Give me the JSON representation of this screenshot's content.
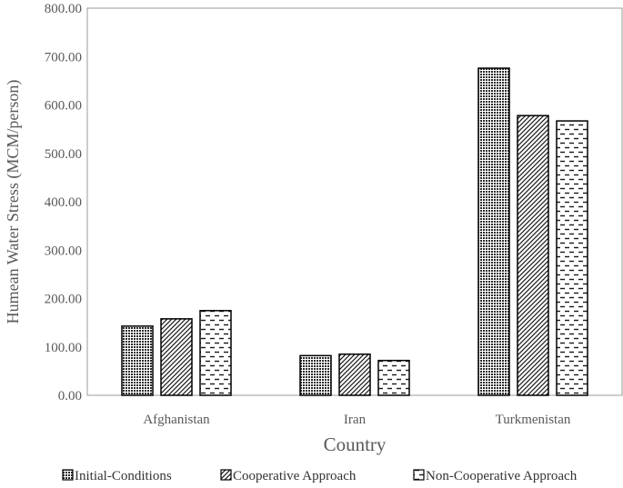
{
  "chart_data": {
    "type": "bar",
    "title": "",
    "xlabel": "Country",
    "ylabel": "Humean Water Stress (MCM/person)",
    "categories": [
      "Afghanistan",
      "Iran",
      "Turkmenistan"
    ],
    "series": [
      {
        "name": "Initial-Conditions",
        "values": [
          143,
          82,
          676
        ],
        "pattern": "dense-dots"
      },
      {
        "name": "Cooperative Approach",
        "values": [
          158,
          85,
          578
        ],
        "pattern": "diagonal-hatch"
      },
      {
        "name": "Non-Cooperative Approach",
        "values": [
          175,
          72,
          567
        ],
        "pattern": "dashed-horizontal"
      }
    ],
    "ylim": [
      0,
      800
    ],
    "yticks": [
      "0.00",
      "100.00",
      "200.00",
      "300.00",
      "400.00",
      "500.00",
      "600.00",
      "700.00",
      "800.00"
    ],
    "grid": false,
    "legend_position": "bottom"
  }
}
